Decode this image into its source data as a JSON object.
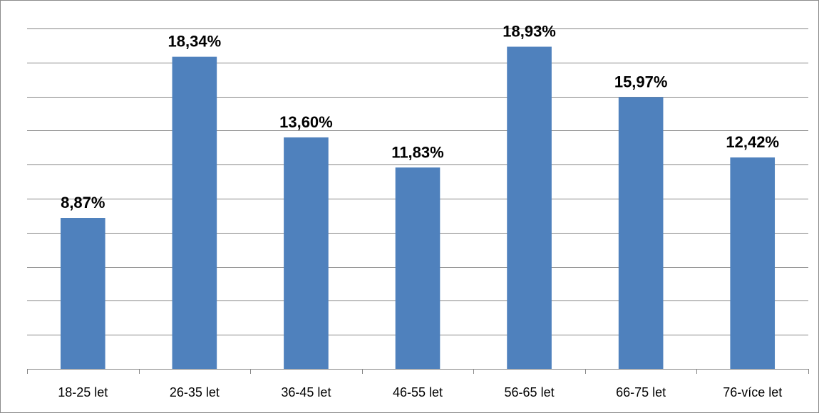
{
  "chart_data": {
    "type": "bar",
    "categories": [
      "18-25 let",
      "26-35 let",
      "36-45 let",
      "46-55 let",
      "56-65 let",
      "66-75 let",
      "76-více let"
    ],
    "values": [
      8.87,
      18.34,
      13.6,
      11.83,
      18.93,
      15.97,
      12.42
    ],
    "data_labels": [
      "8,87%",
      "18,34%",
      "13,60%",
      "11,83%",
      "18,93%",
      "15,97%",
      "12,42%"
    ],
    "title": "",
    "xlabel": "",
    "ylabel": "",
    "ylim": [
      0,
      20
    ],
    "grid": true,
    "legend": "none",
    "colors": {
      "bar": "#4f81bd",
      "grid": "#868686",
      "axis": "#868686"
    }
  }
}
